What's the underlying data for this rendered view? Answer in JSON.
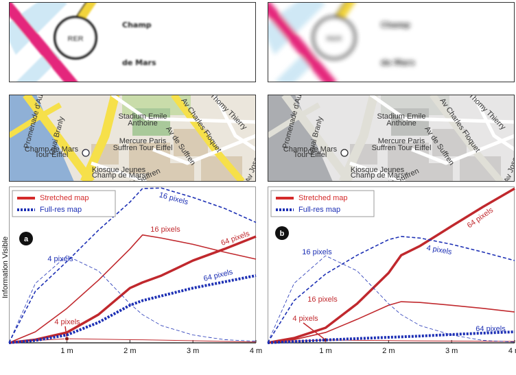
{
  "banner": {
    "badge": "RER",
    "line1": "Champ",
    "line2": "de Mars"
  },
  "map_labels": [
    "Quai Branly",
    "Stadium Emile",
    "Anthoine",
    "Mercure Paris",
    "Suffren Tour Eiffel",
    "Av de Suffren",
    "Av de Suffren",
    "Av Charles Floquet",
    "Allée Thomy Thierry",
    "Promenade d'Australie",
    "Champ de Mars",
    "Tour Eiffel",
    "Kiosque Jeunes",
    "Champ de Mars",
    "Av Jose"
  ],
  "chart_data": [
    {
      "type": "line",
      "panel": "a",
      "ylabel": "Information Visible",
      "legend": [
        {
          "name": "Stretched map",
          "color": "#d42a2a",
          "dash": "solid"
        },
        {
          "name": "Full-res map",
          "color": "#1c2fb4",
          "dash": "dotted"
        }
      ],
      "x": [
        0.08,
        0.5,
        1,
        1.5,
        2,
        2.2,
        2.5,
        3,
        3.5,
        4
      ],
      "xlim": [
        0.08,
        4
      ],
      "xticks": [
        {
          "value": 1,
          "label": "1 m"
        },
        {
          "value": 2,
          "label": "2 m"
        },
        {
          "value": 3,
          "label": "3 m"
        },
        {
          "value": 4,
          "label": "4 m"
        }
      ],
      "ylim": [
        0,
        100
      ],
      "series": [
        {
          "name": "4 pixels",
          "color": "#c0282d",
          "width": 1,
          "dash": "solid",
          "values": [
            0,
            1.5,
            2.6,
            2.3,
            2,
            1.9,
            1.7,
            1.3,
            0.9,
            0.5
          ]
        },
        {
          "name": "16 pixels",
          "color": "#c0282d",
          "width": 1.6,
          "dash": "solid",
          "values": [
            0,
            7,
            22,
            40,
            60,
            69,
            67,
            63,
            58,
            53.5
          ]
        },
        {
          "name": "64 pixels",
          "color": "#c0282d",
          "width": 3.5,
          "dash": "solid",
          "values": [
            0,
            2,
            6.6,
            18,
            35,
            38.6,
            43,
            52.6,
            60,
            68
          ]
        },
        {
          "name": "4 pixels",
          "color": "#1c2fb4",
          "width": 0.8,
          "dash": "dashed",
          "values": [
            0,
            38,
            55.7,
            46,
            25,
            18,
            11,
            5,
            2,
            1
          ]
        },
        {
          "name": "16 pixels",
          "color": "#1c2fb4",
          "width": 1.6,
          "dash": "dashed",
          "values": [
            0,
            33,
            52,
            72,
            90,
            98.7,
            99,
            93,
            86,
            77
          ]
        },
        {
          "name": "64 pixels",
          "color": "#1c2fb4",
          "width": 4,
          "dash": "dotted",
          "values": [
            0,
            1.5,
            5,
            13,
            24,
            27,
            30,
            35,
            39,
            43
          ]
        }
      ]
    },
    {
      "type": "line",
      "panel": "b",
      "legend": [
        {
          "name": "Stretched map",
          "color": "#d42a2a",
          "dash": "solid"
        },
        {
          "name": "Full-res map",
          "color": "#1c2fb4",
          "dash": "dotted"
        }
      ],
      "x": [
        0.08,
        0.5,
        1,
        1.5,
        2,
        2.2,
        2.5,
        3,
        3.5,
        4
      ],
      "xlim": [
        0.08,
        4
      ],
      "xticks": [
        {
          "value": 1,
          "label": "1 m"
        },
        {
          "value": 2,
          "label": "2 m"
        },
        {
          "value": 3,
          "label": "3 m"
        },
        {
          "value": 4,
          "label": "4 m"
        }
      ],
      "ylim": [
        0,
        100
      ],
      "series": [
        {
          "name": "4 pixels",
          "color": "#c0282d",
          "width": 1,
          "dash": "solid",
          "values": [
            0,
            1,
            1.8,
            1.6,
            1.4,
            1.3,
            1.2,
            1.1,
            1,
            0.9
          ]
        },
        {
          "name": "16 pixels",
          "color": "#c0282d",
          "width": 1.6,
          "dash": "solid",
          "values": [
            0,
            2,
            6.6,
            15,
            24,
            26.3,
            25.8,
            24,
            22,
            19.7
          ]
        },
        {
          "name": "64 pixels",
          "color": "#c0282d",
          "width": 3.5,
          "dash": "solid",
          "values": [
            0,
            3,
            9.6,
            25,
            44.7,
            56,
            62,
            74.6,
            87,
            98.7
          ]
        },
        {
          "name": "4 pixels",
          "color": "#1c2fb4",
          "width": 0.8,
          "dash": "dashed",
          "values": [
            0,
            38,
            55.7,
            46,
            25,
            18,
            11,
            5,
            1.5,
            0.5
          ]
        },
        {
          "name": "16 pixels",
          "color": "#1c2fb4",
          "width": 1.6,
          "dash": "dashed",
          "values": [
            0,
            27,
            44,
            56,
            66,
            68,
            67,
            63,
            58,
            52.6
          ]
        },
        {
          "name": "64 pixels",
          "color": "#1c2fb4",
          "width": 4,
          "dash": "dotted",
          "values": [
            0,
            0.8,
            1.8,
            2.7,
            3.5,
            3.8,
            4.3,
            5.3,
            6.2,
            7
          ]
        }
      ]
    }
  ]
}
